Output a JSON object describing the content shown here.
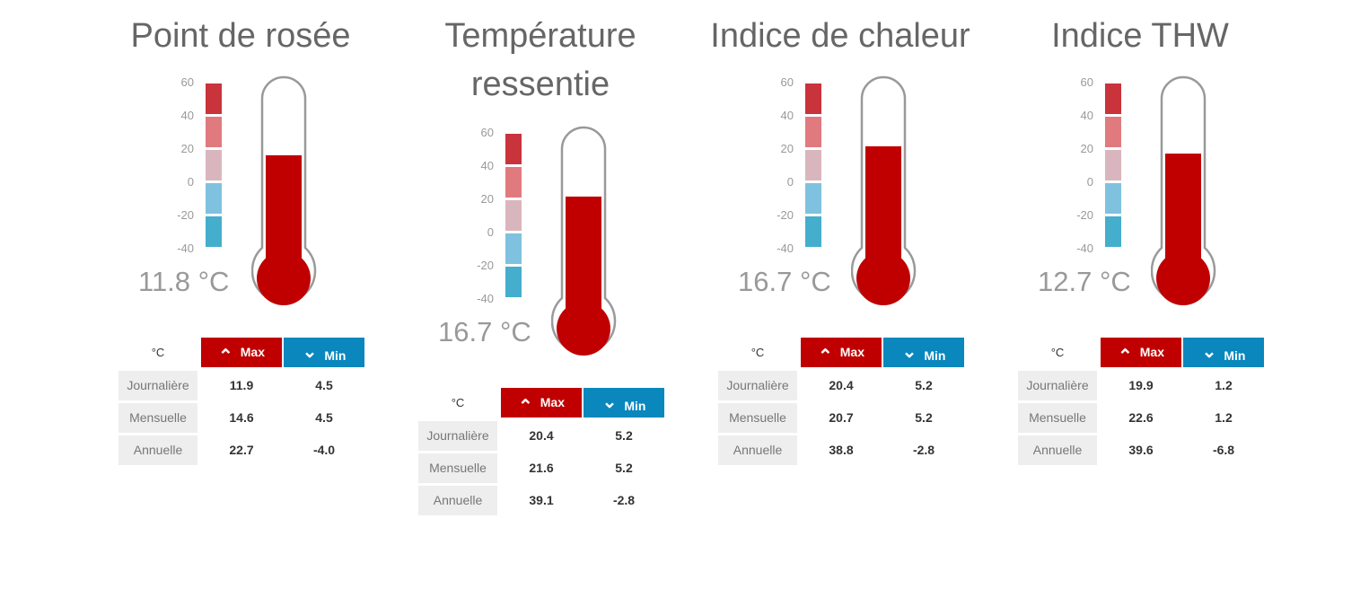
{
  "colors": {
    "accent": "#c00000",
    "min": "#0a87bd",
    "scale": [
      "#c9333b",
      "#e07a7f",
      "#d9b6bd",
      "#7fc2df",
      "#45aecc"
    ]
  },
  "scale_ticks": [
    "60",
    "40",
    "20",
    "0",
    "-20",
    "-40"
  ],
  "table_header": {
    "unit": "°C",
    "max": "Max",
    "min": "Min",
    "max_icon": "chevron-up-icon",
    "min_icon": "chevron-down-icon"
  },
  "row_labels": [
    "Journalière",
    "Mensuelle",
    "Annuelle"
  ],
  "panels": [
    {
      "title": [
        "Point de rosée"
      ],
      "value": 11.8,
      "value_text": "11.8 °C",
      "rows": [
        [
          "11.9",
          "4.5"
        ],
        [
          "14.6",
          "4.5"
        ],
        [
          "22.7",
          "-4.0"
        ]
      ]
    },
    {
      "title": [
        "Température",
        "ressentie"
      ],
      "value": 16.7,
      "value_text": "16.7 °C",
      "rows": [
        [
          "20.4",
          "5.2"
        ],
        [
          "21.6",
          "5.2"
        ],
        [
          "39.1",
          "-2.8"
        ]
      ]
    },
    {
      "title": [
        "Indice de chaleur"
      ],
      "value": 16.7,
      "value_text": "16.7 °C",
      "rows": [
        [
          "20.4",
          "5.2"
        ],
        [
          "20.7",
          "5.2"
        ],
        [
          "38.8",
          "-2.8"
        ]
      ]
    },
    {
      "title": [
        "Indice THW"
      ],
      "value": 12.7,
      "value_text": "12.7 °C",
      "rows": [
        [
          "19.9",
          "1.2"
        ],
        [
          "22.6",
          "1.2"
        ],
        [
          "39.6",
          "-6.8"
        ]
      ]
    }
  ]
}
